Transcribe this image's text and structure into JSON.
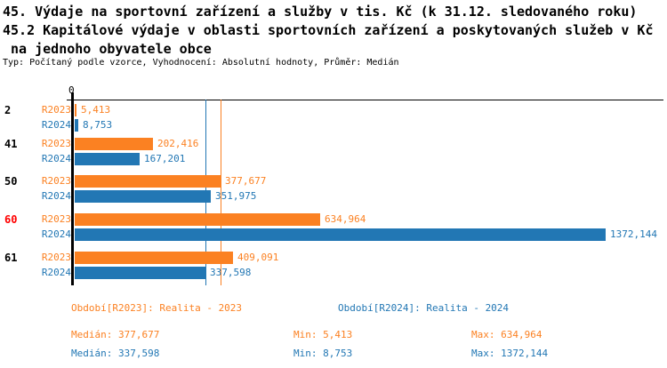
{
  "title": {
    "line1": "45. Výdaje na sportovní zařízení a služby v tis. Kč (k 31.12. sledovaného roku)",
    "line2": "45.2 Kapitálové výdaje v oblasti sportovních zařízení a poskytovaných služeb v Kč",
    "line3": " na jednoho obyvatele obce",
    "meta": "Typ: Počítaný podle vzorce, Vyhodnocení: Absolutní hodnoty, Průměr: Medián"
  },
  "colors": {
    "r2023": "#fb8122",
    "r2024": "#2277b4",
    "highlight_category": "#ff0000",
    "axis": "#000000"
  },
  "chart_data": {
    "type": "bar",
    "orientation": "horizontal",
    "axis_zero_label": "0",
    "xlim": [
      0,
      1410
    ],
    "categories": [
      "2",
      "41",
      "50",
      "60",
      "61"
    ],
    "highlighted_category": "60",
    "series": [
      {
        "name": "R2023",
        "color": "#fb8122",
        "values": [
          5.413,
          202.416,
          377.677,
          634.964,
          409.091
        ],
        "labels": [
          "5,413",
          "202,416",
          "377,677",
          "634,964",
          "409,091"
        ]
      },
      {
        "name": "R2024",
        "color": "#2277b4",
        "values": [
          8.753,
          167.201,
          351.975,
          1372.144,
          337.598
        ],
        "labels": [
          "8,753",
          "167,201",
          "351,975",
          "1372,144",
          "337,598"
        ]
      }
    ],
    "reference_lines": [
      {
        "series": "R2023",
        "stat": "median",
        "value": 377.677,
        "color": "#fb8122"
      },
      {
        "series": "R2024",
        "stat": "median",
        "value": 337.598,
        "color": "#2277b4"
      }
    ]
  },
  "legend": {
    "r2023": "Období[R2023]: Realita - 2023",
    "r2024": "Období[R2024]: Realita - 2024"
  },
  "stats": {
    "r2023": {
      "median": "Medián: 377,677",
      "min": "Min: 5,413",
      "max": "Max: 634,964"
    },
    "r2024": {
      "median": "Medián: 337,598",
      "min": "Min: 8,753",
      "max": "Max: 1372,144"
    }
  }
}
